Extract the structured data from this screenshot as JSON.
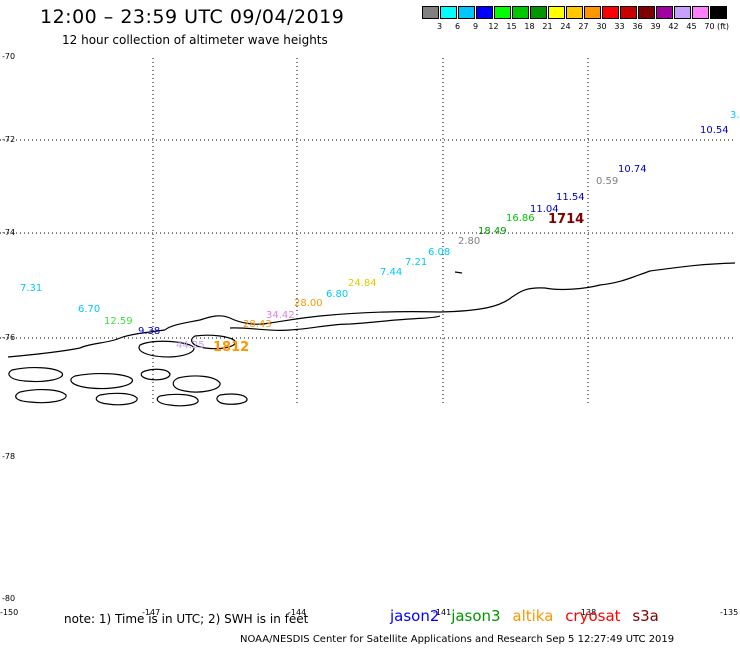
{
  "header": {
    "title": "12:00 – 23:59 UTC 09/04/2019",
    "subtitle": "12 hour collection of altimeter wave heights"
  },
  "colorbar": {
    "unit": "(ft)",
    "colors": [
      "#808080",
      "#00ffff",
      "#00c8ff",
      "#0000ff",
      "#00ff00",
      "#00c800",
      "#009600",
      "#ffff00",
      "#ffc800",
      "#ff9600",
      "#ff0000",
      "#c80000",
      "#800000",
      "#a000a0",
      "#c8a0ff",
      "#ff80ff",
      "#000000"
    ],
    "labels": [
      "3",
      "6",
      "9",
      "12",
      "15",
      "18",
      "21",
      "24",
      "27",
      "30",
      "33",
      "36",
      "39",
      "42",
      "45",
      "70"
    ]
  },
  "axes": {
    "lat_labels": [
      "-70",
      "-72",
      "-74",
      "-76",
      "-78",
      "-80"
    ],
    "lon_labels": [
      "-150",
      "-147",
      "-144",
      "-141",
      "-138",
      "-135"
    ]
  },
  "wave_heights": [
    {
      "text": "3.",
      "color": "#00c8ff"
    },
    {
      "text": "10.54",
      "color": "#0000c8"
    },
    {
      "text": "10.74",
      "color": "#0000c8"
    },
    {
      "text": "0.59",
      "color": "#808080"
    },
    {
      "text": "11.54",
      "color": "#0000c8"
    },
    {
      "text": "11.04",
      "color": "#0000c8"
    },
    {
      "text": "1714",
      "color": "#800000"
    },
    {
      "text": "16.86",
      "color": "#00c800"
    },
    {
      "text": "18.49",
      "color": "#009600"
    },
    {
      "text": "2.80",
      "color": "#808080"
    },
    {
      "text": "6.08",
      "color": "#00c8ff"
    },
    {
      "text": "7.21",
      "color": "#00c8ff"
    },
    {
      "text": "7.44",
      "color": "#00c8ff"
    },
    {
      "text": "24.84",
      "color": "#e6c800"
    },
    {
      "text": "6.80",
      "color": "#00c8ff"
    },
    {
      "text": "28.00",
      "color": "#ff9600"
    },
    {
      "text": "34.42",
      "color": "#e080e0"
    },
    {
      "text": "28.43",
      "color": "#ff9600"
    },
    {
      "text": "7.31",
      "color": "#00c8ff"
    },
    {
      "text": "6.70",
      "color": "#00c8ff"
    },
    {
      "text": "12.59",
      "color": "#40e040"
    },
    {
      "text": "9.38",
      "color": "#0000c8"
    },
    {
      "text": "44.25",
      "color": "#c8a0ff"
    },
    {
      "text": "1812",
      "color": "#ff9600"
    }
  ],
  "note": "note: 1) Time is in UTC; 2) SWH is in feet",
  "legend": [
    {
      "text": "jason2",
      "color": "#0000ff"
    },
    {
      "text": "jason3",
      "color": "#009600"
    },
    {
      "text": "altika",
      "color": "#ff9600"
    },
    {
      "text": "cryosat",
      "color": "#ff0000"
    },
    {
      "text": "s3a",
      "color": "#800000"
    }
  ],
  "footer": "NOAA/NESDIS Center for Satellite Applications and Research    Sep  5 12:27:49 UTC 2019"
}
